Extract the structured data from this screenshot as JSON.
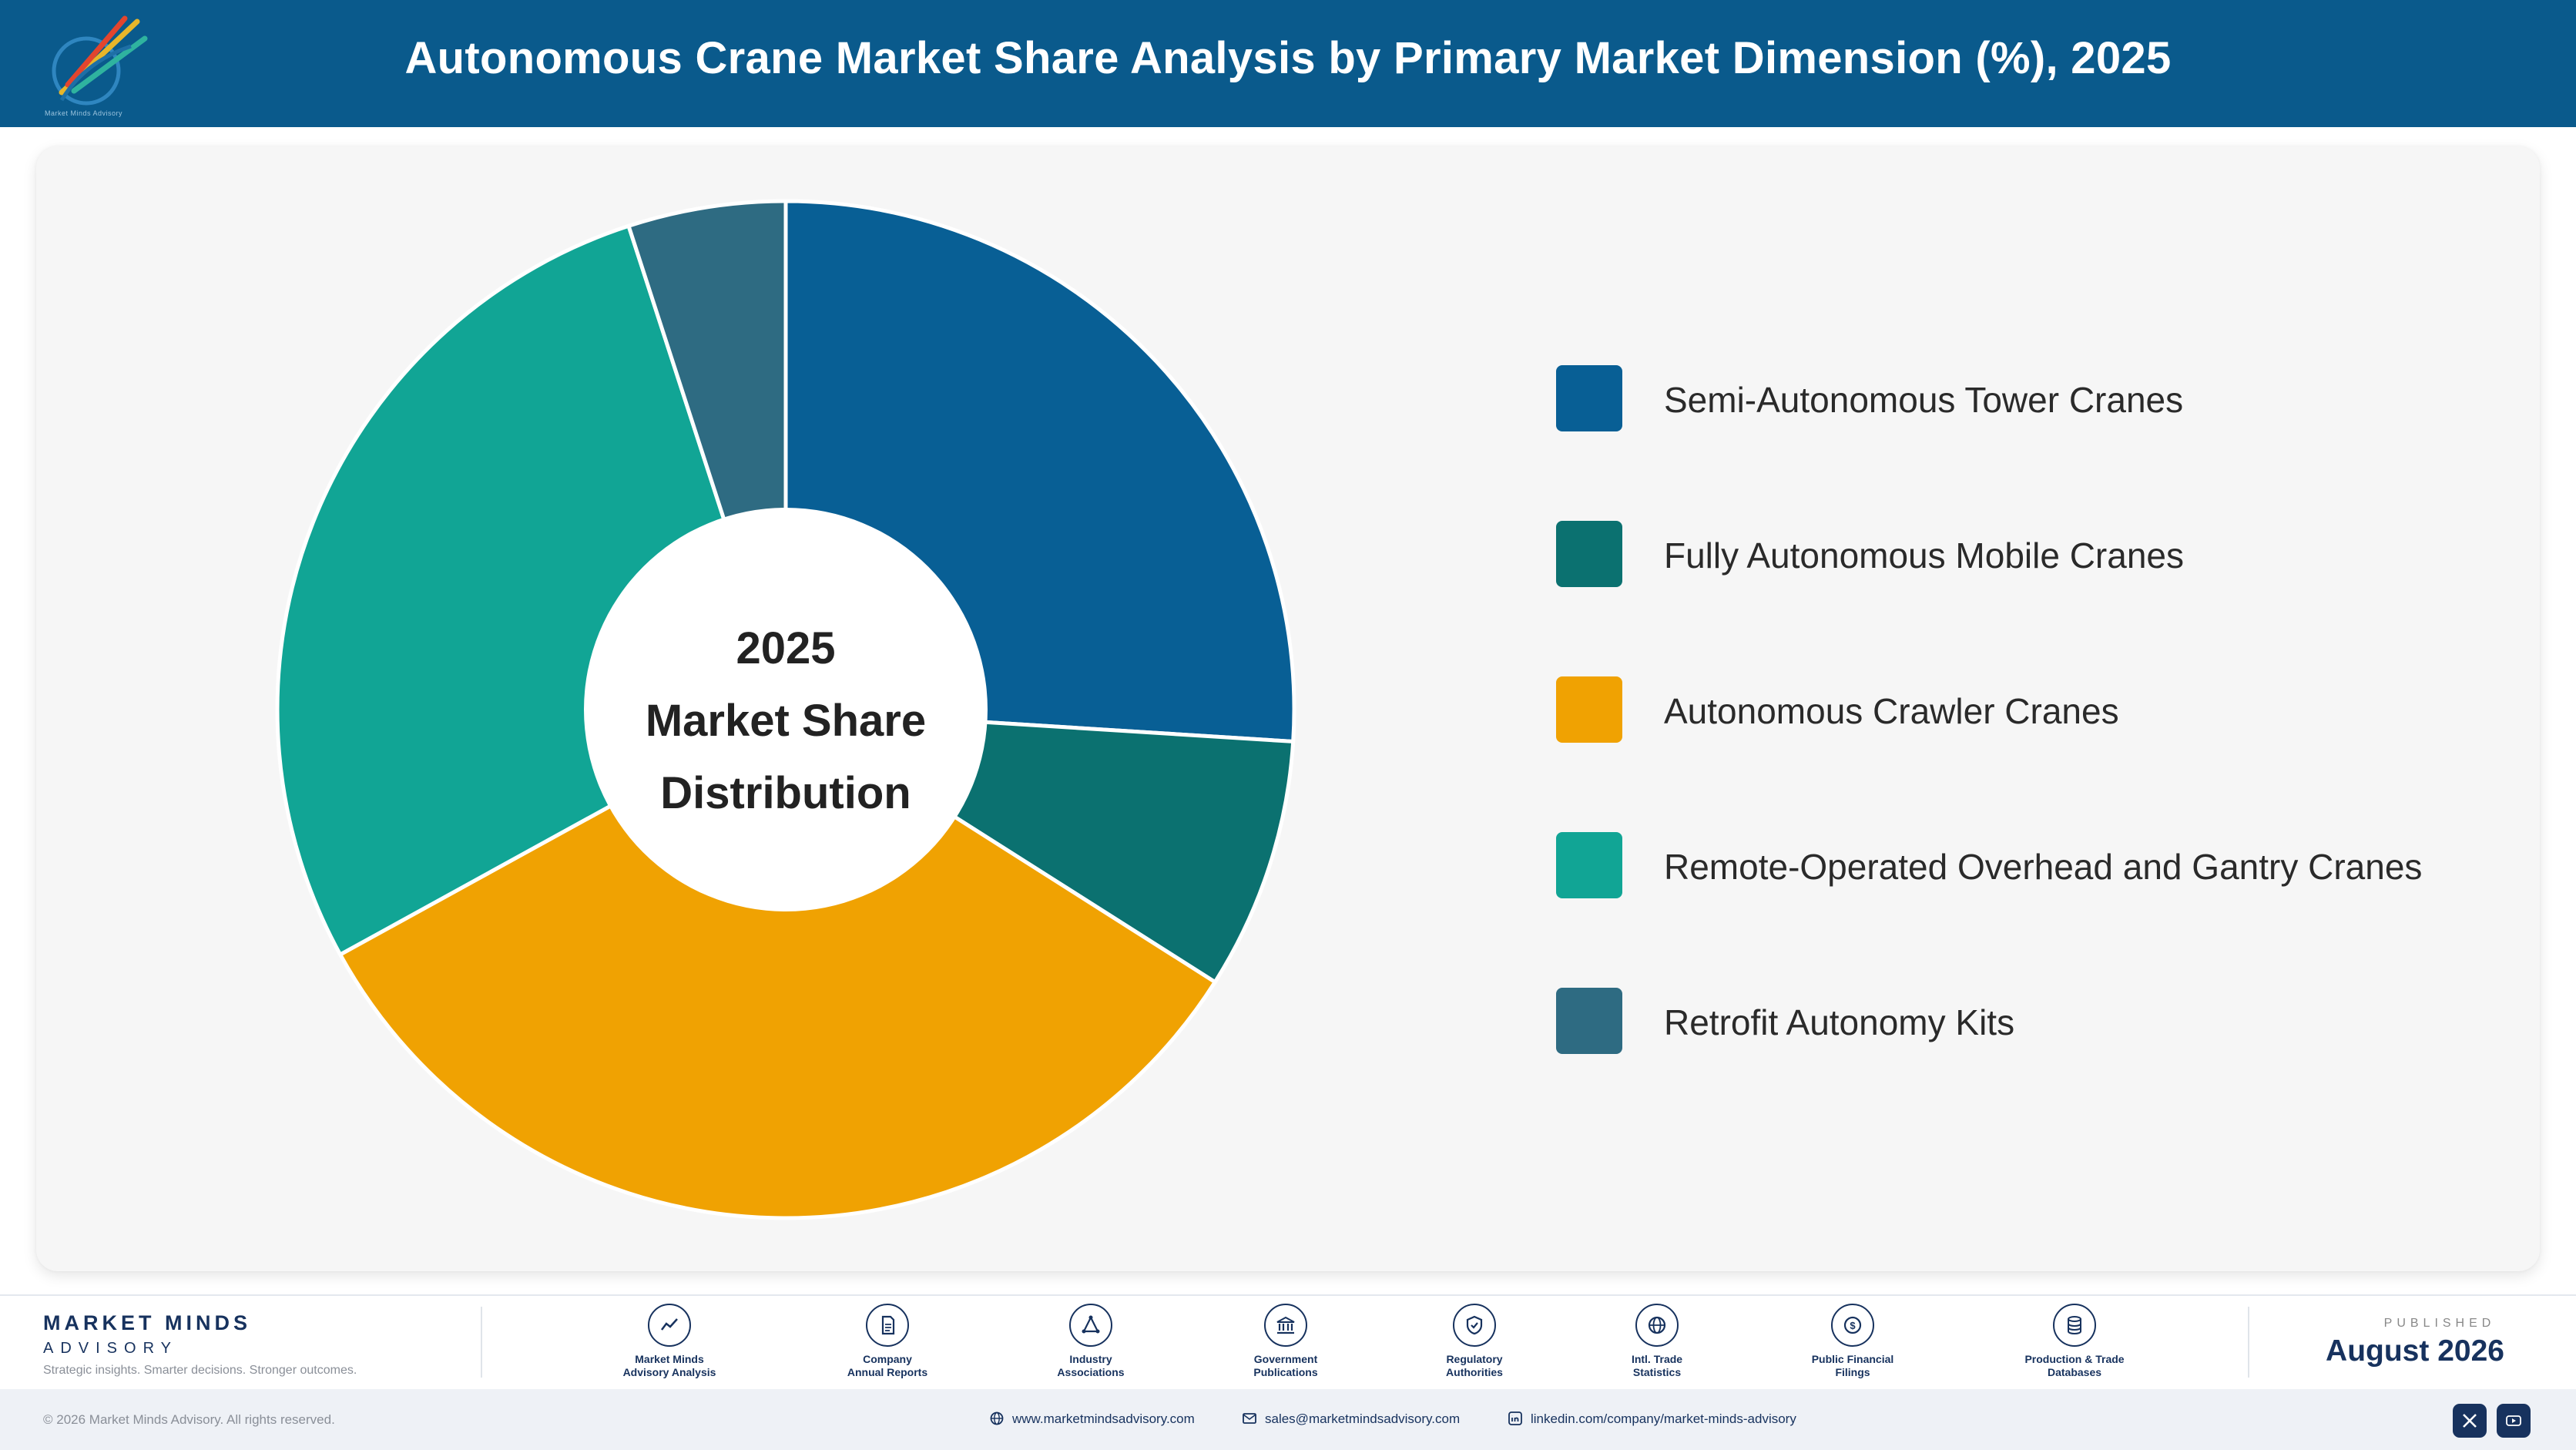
{
  "header": {
    "title": "Autonomous Crane Market Share Analysis by Primary Market Dimension (%), 2025",
    "logo_text": "Market Minds Advisory"
  },
  "chart_data": {
    "type": "pie",
    "variant": "donut",
    "center_label": [
      "2025",
      "Market Share",
      "Distribution"
    ],
    "categories": [
      "Semi-Autonomous Tower Cranes",
      "Fully Autonomous Mobile Cranes",
      "Autonomous Crawler Cranes",
      "Remote-Operated Overhead and Gantry Cranes",
      "Retrofit Autonomy Kits"
    ],
    "values": [
      26,
      8,
      33,
      28,
      5
    ],
    "colors": [
      "#085f95",
      "#0b7170",
      "#f0a202",
      "#11a595",
      "#2e6b82"
    ],
    "legend_position": "right"
  },
  "footer": {
    "brand_name": "MARKET MINDS",
    "brand_sub": "ADVISORY",
    "tagline": "Strategic insights. Smarter decisions. Stronger outcomes.",
    "sources": [
      {
        "icon": "trend-chart-icon",
        "line1": "Market Minds",
        "line2": "Advisory Analysis"
      },
      {
        "icon": "document-icon",
        "line1": "Company",
        "line2": "Annual Reports"
      },
      {
        "icon": "network-icon",
        "line1": "Industry",
        "line2": "Associations"
      },
      {
        "icon": "government-building-icon",
        "line1": "Government",
        "line2": "Publications"
      },
      {
        "icon": "shield-check-icon",
        "line1": "Regulatory",
        "line2": "Authorities"
      },
      {
        "icon": "globe-icon",
        "line1": "Intl. Trade",
        "line2": "Statistics"
      },
      {
        "icon": "dollar-coin-icon",
        "line1": "Public Financial",
        "line2": "Filings"
      },
      {
        "icon": "database-icon",
        "line1": "Production & Trade",
        "line2": "Databases"
      }
    ],
    "published_label": "PUBLISHED",
    "published_date": "August 2026"
  },
  "bottom_bar": {
    "copyright": "© 2026 Market Minds Advisory. All rights reserved.",
    "website": "www.marketmindsadvisory.com",
    "email": "sales@marketmindsadvisory.com",
    "linkedin": "linkedin.com/company/market-minds-advisory"
  }
}
